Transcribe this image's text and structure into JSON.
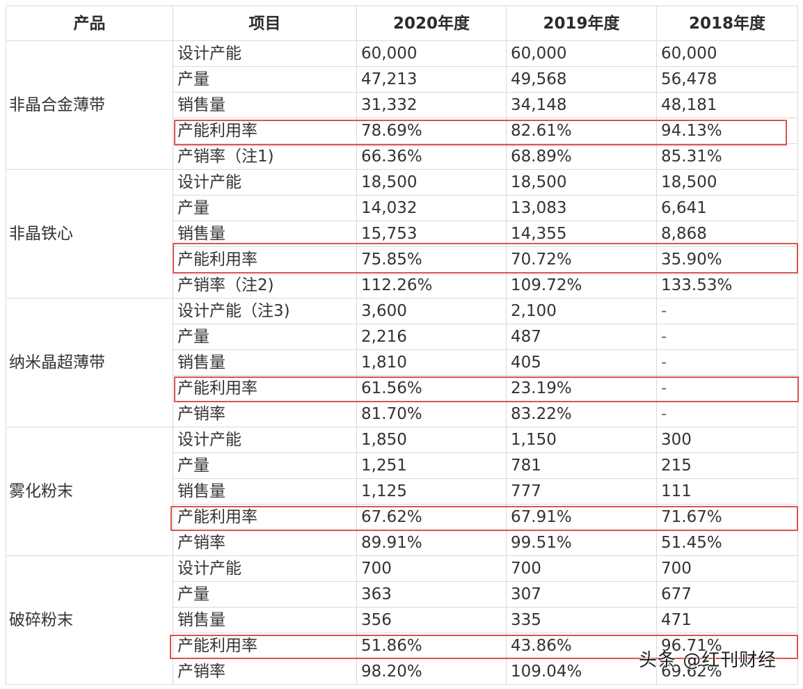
{
  "table": {
    "headers": [
      "产品",
      "项目",
      "2020年度",
      "2019年度",
      "2018年度"
    ],
    "groups": [
      {
        "product": "非晶合金薄带",
        "rows": [
          {
            "item": "设计产能",
            "y2020": "60,000",
            "y2019": "60,000",
            "y2018": "60,000"
          },
          {
            "item": "产量",
            "y2020": "47,213",
            "y2019": "49,568",
            "y2018": "56,478"
          },
          {
            "item": "销售量",
            "y2020": "31,332",
            "y2019": "34,148",
            "y2018": "48,181"
          },
          {
            "item": "产能利用率",
            "y2020": "78.69%",
            "y2019": "82.61%",
            "y2018": "94.13%",
            "highlighted": true
          },
          {
            "item": "产销率（注1)",
            "y2020": "66.36%",
            "y2019": "68.89%",
            "y2018": "85.31%"
          }
        ]
      },
      {
        "product": "非晶铁心",
        "rows": [
          {
            "item": "设计产能",
            "y2020": "18,500",
            "y2019": "18,500",
            "y2018": "18,500"
          },
          {
            "item": "产量",
            "y2020": "14,032",
            "y2019": "13,083",
            "y2018": "6,641"
          },
          {
            "item": "销售量",
            "y2020": "15,753",
            "y2019": "14,355",
            "y2018": "8,868"
          },
          {
            "item": "产能利用率",
            "y2020": "75.85%",
            "y2019": "70.72%",
            "y2018": "35.90%",
            "highlighted": true
          },
          {
            "item": "产销率（注2)",
            "y2020": "112.26%",
            "y2019": "109.72%",
            "y2018": "133.53%"
          }
        ]
      },
      {
        "product": "纳米晶超薄带",
        "rows": [
          {
            "item": "设计产能（注3)",
            "y2020": "3,600",
            "y2019": "2,100",
            "y2018": "-"
          },
          {
            "item": "产量",
            "y2020": "2,216",
            "y2019": "487",
            "y2018": "-"
          },
          {
            "item": "销售量",
            "y2020": "1,810",
            "y2019": "405",
            "y2018": "-"
          },
          {
            "item": "产能利用率",
            "y2020": "61.56%",
            "y2019": "23.19%",
            "y2018": "-",
            "highlighted": true
          },
          {
            "item": "产销率",
            "y2020": "81.70%",
            "y2019": "83.22%",
            "y2018": "-"
          }
        ]
      },
      {
        "product": "雾化粉末",
        "rows": [
          {
            "item": "设计产能",
            "y2020": "1,850",
            "y2019": "1,150",
            "y2018": "300"
          },
          {
            "item": "产量",
            "y2020": "1,251",
            "y2019": "781",
            "y2018": "215"
          },
          {
            "item": "销售量",
            "y2020": "1,125",
            "y2019": "777",
            "y2018": "111"
          },
          {
            "item": "产能利用率",
            "y2020": "67.62%",
            "y2019": "67.91%",
            "y2018": "71.67%",
            "highlighted": true
          },
          {
            "item": "产销率",
            "y2020": "89.91%",
            "y2019": "99.51%",
            "y2018": "51.45%"
          }
        ]
      },
      {
        "product": "破碎粉末",
        "rows": [
          {
            "item": "设计产能",
            "y2020": "700",
            "y2019": "700",
            "y2018": "700"
          },
          {
            "item": "产量",
            "y2020": "363",
            "y2019": "307",
            "y2018": "677"
          },
          {
            "item": "销售量",
            "y2020": "356",
            "y2019": "335",
            "y2018": "471"
          },
          {
            "item": "产能利用率",
            "y2020": "51.86%",
            "y2019": "43.86%",
            "y2018": "96.71%",
            "highlighted": true
          },
          {
            "item": "产销率",
            "y2020": "98.20%",
            "y2019": "109.04%",
            "y2018": "69.62%"
          }
        ]
      }
    ]
  },
  "highlight_color": "#d9534f",
  "border_color": "#d9d9de",
  "watermark": "头条 @红刊财经"
}
